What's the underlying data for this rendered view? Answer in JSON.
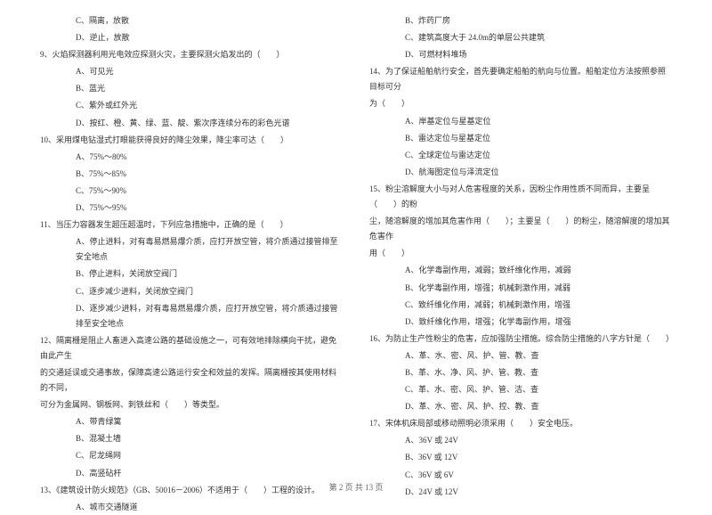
{
  "leftColumn": {
    "lines": [
      {
        "text": "C、隔离，放散",
        "indent": 2
      },
      {
        "text": "D、逆止，放散",
        "indent": 2
      },
      {
        "text": "9、火焰探测器利用光电效应探测火灾，主要探测火焰发出的（　　）",
        "indent": 0
      },
      {
        "text": "A、可见光",
        "indent": 2
      },
      {
        "text": "B、蓝光",
        "indent": 2
      },
      {
        "text": "C、紫外或红外光",
        "indent": 2
      },
      {
        "text": "D、按红、橙、黄、绿、蓝、靛、紫次序连续分布的彩色光谱",
        "indent": 2
      },
      {
        "text": "10、采用煤电钻湿式打眼能获得良好的降尘效果，降尘率可达（　　）",
        "indent": 0
      },
      {
        "text": "A、75%～80%",
        "indent": 2
      },
      {
        "text": "B、75%～85%",
        "indent": 2
      },
      {
        "text": "C、75%～90%",
        "indent": 2
      },
      {
        "text": "D、75%～95%",
        "indent": 2
      },
      {
        "text": "11、当压力容器发生超压超温时，下列应急措施中，正确的是（　　）",
        "indent": 0
      },
      {
        "text": "A、停止进料，对有毒易燃易爆介质，应打开放空管，将介质通过接管排至安全地点",
        "indent": 2
      },
      {
        "text": "B、停止进料，关闭放空阀门",
        "indent": 2
      },
      {
        "text": "C、逐步减少进料，关闭放空阀门",
        "indent": 2
      },
      {
        "text": "D、逐步减少进料，对有毒易燃易爆介质，应打开放空管，将介质通过接管排至安全地点",
        "indent": 2
      },
      {
        "text": "12、隔离栅是阻止人畜进入高速公路的基础设施之一，可有效地排除横向干扰，避免由此产生",
        "indent": 0
      },
      {
        "text": "的交通延误或交通事故，保障高速公路运行安全和效益的发挥。隔离栅按其使用材料的不同，",
        "indent": 0
      },
      {
        "text": "可分为金属网、钢板网、刺铁丝和（　　）等类型。",
        "indent": 0
      },
      {
        "text": "A、带青绿篱",
        "indent": 2
      },
      {
        "text": "B、混凝土墙",
        "indent": 2
      },
      {
        "text": "C、尼龙绳网",
        "indent": 2
      },
      {
        "text": "D、高竖砧杆",
        "indent": 2
      },
      {
        "text": "13、《建筑设计防火规范》（GB、50016－2006）不适用于（　　）工程的设计。",
        "indent": 0
      },
      {
        "text": "A、城市交通隧道",
        "indent": 2
      }
    ]
  },
  "rightColumn": {
    "lines": [
      {
        "text": "B、炸药厂房",
        "indent": 2
      },
      {
        "text": "C、建筑高度大于 24.0m的单层公共建筑",
        "indent": 2
      },
      {
        "text": "D、可燃材料堆场",
        "indent": 2
      },
      {
        "text": "14、为了保证船舶航行安全，首先要确定船舶的航向与位置。船舶定位方法按照参照目标可分",
        "indent": 0
      },
      {
        "text": "为（　　）",
        "indent": 0
      },
      {
        "text": "A、岸基定位与星基定位",
        "indent": 2
      },
      {
        "text": "B、雷达定位与星基定位",
        "indent": 2
      },
      {
        "text": "C、全球定位与雷达定位",
        "indent": 2
      },
      {
        "text": "D、航海图定位与泽流定位",
        "indent": 2
      },
      {
        "text": "15、粉尘溶解度大小与对人危害程度的关系，因粉尘作用性质不同而异，主要呈（　　）的粉",
        "indent": 0
      },
      {
        "text": "尘，随溶解度的增加其危害作用（　　）；主要呈（　　）的粉尘，随溶解度的增加其危害作",
        "indent": 0
      },
      {
        "text": "用（　　）",
        "indent": 0
      },
      {
        "text": "A、化学毒副作用，减弱；致纤维化作用，减弱",
        "indent": 2
      },
      {
        "text": "B、化学毒副作用，增强；机械刺激作用，减弱",
        "indent": 2
      },
      {
        "text": "C、致纤维化作用，减弱；机械刺激作用，增强",
        "indent": 2
      },
      {
        "text": "D、致纤维化作用，增强；化学毒副作用，增强",
        "indent": 2
      },
      {
        "text": "16、为防止生产性粉尘的危害，应加强防尘措施。综合防尘措施的八字方针是（　　）",
        "indent": 0
      },
      {
        "text": "A、革、水、密、风、护、管、教、查",
        "indent": 2
      },
      {
        "text": "B、革、水、净、风、护、管、教、查",
        "indent": 2
      },
      {
        "text": "C、革、水、密、风、护、管、洁、查",
        "indent": 2
      },
      {
        "text": "D、革、水、密、风、护、控、教、查",
        "indent": 2
      },
      {
        "text": "17、宋体机床局部或移动照明必须采用（　　）安全电压。",
        "indent": 0
      },
      {
        "text": "A、36V 或 24V",
        "indent": 2
      },
      {
        "text": "B、36V 或 12V",
        "indent": 2
      },
      {
        "text": "C、36V 或 6V",
        "indent": 2
      },
      {
        "text": "D、24V 或 12V",
        "indent": 2
      }
    ]
  },
  "footer": "第 2 页 共 13 页"
}
